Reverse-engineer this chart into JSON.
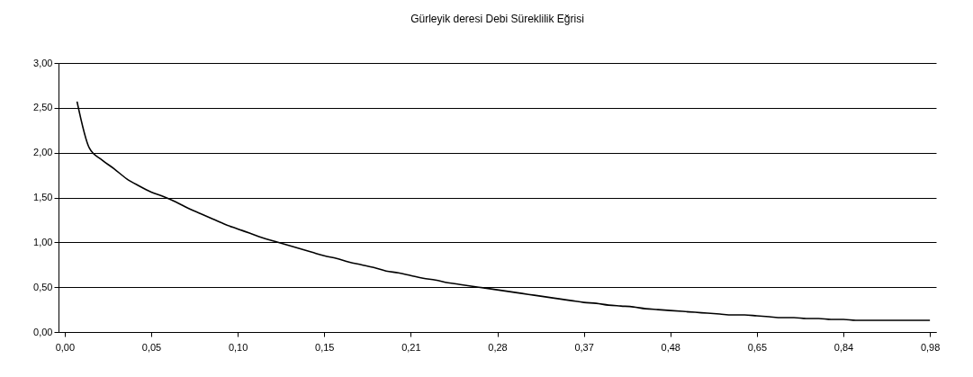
{
  "chart_data": {
    "type": "line",
    "title": "Gürleyik deresi Debi Süreklilik Eğrisi",
    "categories": [
      "0,00",
      null,
      null,
      null,
      null,
      null,
      null,
      "0,05",
      null,
      null,
      null,
      null,
      null,
      null,
      "0,10",
      null,
      null,
      null,
      null,
      null,
      null,
      "0,15",
      null,
      null,
      null,
      null,
      null,
      null,
      "0,21",
      null,
      null,
      null,
      null,
      null,
      null,
      "0,28",
      null,
      null,
      null,
      null,
      null,
      null,
      "0,37",
      null,
      null,
      null,
      null,
      null,
      null,
      "0,48",
      null,
      null,
      null,
      null,
      null,
      null,
      "0,65",
      null,
      null,
      null,
      null,
      null,
      null,
      "0,84",
      null,
      null,
      null,
      null,
      null,
      null,
      "0,98"
    ],
    "series": [
      {
        "color": "#000000",
        "values": [
          null,
          2.57,
          2.05,
          1.92,
          1.82,
          1.71,
          1.63,
          1.56,
          1.51,
          1.45,
          1.38,
          1.32,
          1.26,
          1.2,
          1.15,
          1.1,
          1.05,
          1.01,
          0.97,
          0.93,
          0.89,
          0.85,
          0.82,
          0.78,
          0.75,
          0.72,
          0.68,
          0.66,
          0.63,
          0.6,
          0.58,
          0.55,
          0.53,
          0.51,
          0.49,
          0.47,
          0.45,
          0.43,
          0.41,
          0.39,
          0.37,
          0.35,
          0.33,
          0.32,
          0.3,
          0.29,
          0.28,
          0.26,
          0.25,
          0.24,
          0.23,
          0.22,
          0.21,
          0.2,
          0.19,
          0.19,
          0.18,
          0.17,
          0.16,
          0.16,
          0.15,
          0.15,
          0.14,
          0.14,
          0.13,
          0.13,
          0.13,
          0.13,
          0.13,
          0.13,
          0.13
        ]
      }
    ],
    "ylim": [
      0,
      3
    ],
    "yticks": [
      {
        "value": 0,
        "label": "0,00"
      },
      {
        "value": 0.5,
        "label": "0,50"
      },
      {
        "value": 1,
        "label": "1,00"
      },
      {
        "value": 1.5,
        "label": "1,50"
      },
      {
        "value": 2,
        "label": "2,00"
      },
      {
        "value": 2.5,
        "label": "2,50"
      },
      {
        "value": 3,
        "label": "3,00"
      }
    ],
    "grid": "y",
    "legend": false,
    "marker": "none",
    "line_style": "solid"
  }
}
